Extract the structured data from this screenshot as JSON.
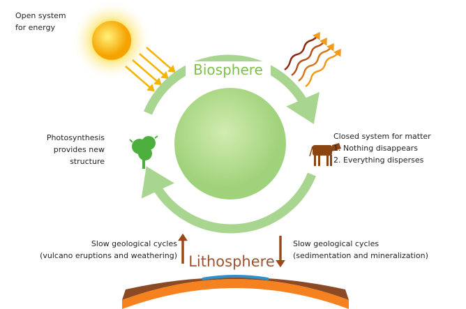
{
  "energy_label": {
    "lines": [
      "Open system",
      "for energy"
    ]
  },
  "biosphere": "Biosphere",
  "photosynthesis": {
    "lines": [
      "Photosynthesis",
      "provides new",
      "structure"
    ]
  },
  "closed_system": {
    "lines": [
      "Closed system for matter",
      "1. Nothing disappears",
      "2. Everything disperses"
    ]
  },
  "geo_left": {
    "lines": [
      "Slow geological cycles",
      "(vulcano eruptions and weathering)"
    ]
  },
  "lithosphere": "Lithosphere",
  "geo_right": {
    "lines": [
      "Slow geological cycles",
      "(sedimentation and mineralization)"
    ]
  }
}
